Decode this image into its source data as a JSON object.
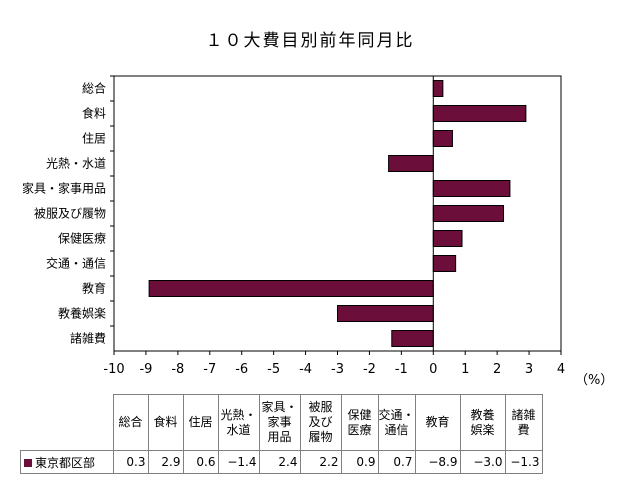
{
  "title": "１０大費目別前年同月比",
  "unit": "（%）",
  "chart_data": {
    "type": "bar",
    "orientation": "horizontal",
    "title": "１０大費目別前年同月比",
    "categories": [
      "総合",
      "食料",
      "住居",
      "光熱・水道",
      "家具・家事用品",
      "被服及び履物",
      "保健医療",
      "交通・通信",
      "教育",
      "教養娯楽",
      "諸雑費"
    ],
    "series": [
      {
        "name": "東京都区部",
        "values": [
          0.3,
          2.9,
          0.6,
          -1.4,
          2.4,
          2.2,
          0.9,
          0.7,
          -8.9,
          -3.0,
          -1.3
        ]
      }
    ],
    "xlim": [
      -10,
      4
    ],
    "ticks": [
      "-10",
      "-9",
      "-8",
      "-7",
      "-6",
      "-5",
      "-4",
      "-3",
      "-2",
      "-1",
      "0",
      "1",
      "2",
      "3",
      "4"
    ],
    "bar_color": "#6B0F3A",
    "grid": false
  },
  "table": {
    "headers": [
      "総合",
      "食料",
      "住居",
      "光熱・\n水道",
      "家具・\n家事\n用品",
      "被服\n及び\n履物",
      "保健\n医療",
      "交通・\n通信",
      "教育",
      "教養\n娯楽",
      "諸雑\n費"
    ],
    "row_label": "東京都区部",
    "values": [
      "0.3",
      "2.9",
      "0.6",
      "−1.4",
      "2.4",
      "2.2",
      "0.9",
      "0.7",
      "−8.9",
      "−3.0",
      "−1.3"
    ]
  }
}
